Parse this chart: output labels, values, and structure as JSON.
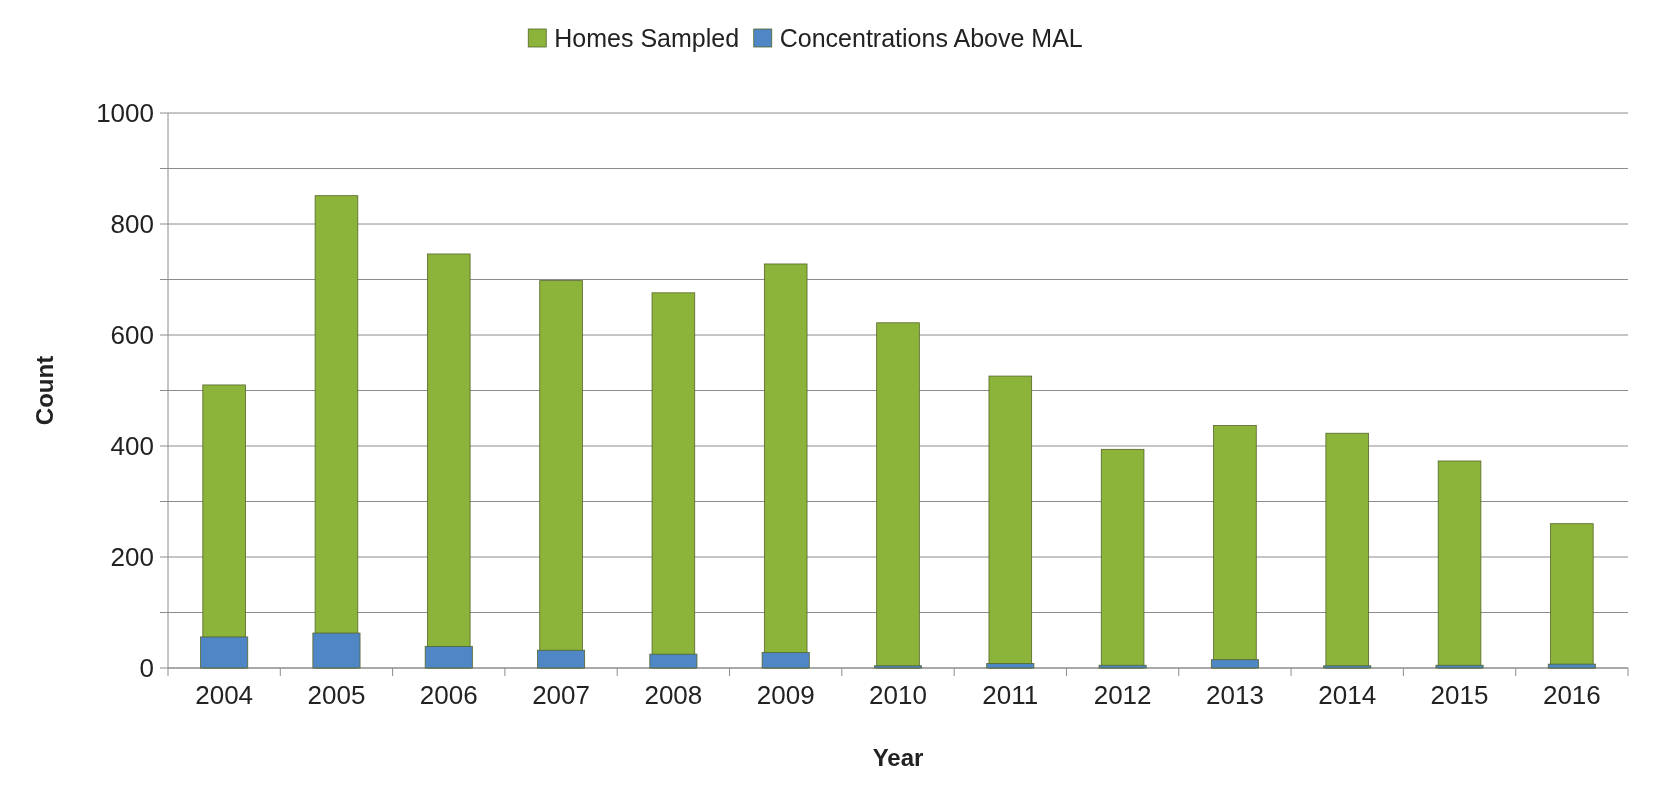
{
  "chart_data": {
    "type": "bar",
    "xlabel": "Year",
    "ylabel": "Count",
    "categories": [
      "2004",
      "2005",
      "2006",
      "2007",
      "2008",
      "2009",
      "2010",
      "2011",
      "2012",
      "2013",
      "2014",
      "2015",
      "2016"
    ],
    "series": [
      {
        "name": "Homes Sampled",
        "color": "#8db43a",
        "values": [
          510,
          851,
          746,
          698,
          676,
          728,
          622,
          526,
          394,
          437,
          423,
          373,
          260
        ]
      },
      {
        "name": "Concentrations Above MAL",
        "color": "#4f86c6",
        "values": [
          56,
          63,
          39,
          32,
          25,
          28,
          4,
          8,
          5,
          15,
          4,
          5,
          7
        ]
      }
    ],
    "ylim": [
      0,
      1000
    ],
    "yticks": [
      0,
      {
        "value": 100,
        "label": null
      },
      200,
      {
        "value": 300,
        "label": null
      },
      400,
      {
        "value": 500,
        "label": null
      },
      600,
      {
        "value": 700,
        "label": null
      },
      800,
      {
        "value": 900,
        "label": null
      },
      1000
    ],
    "grid": "y",
    "legend": "top"
  }
}
